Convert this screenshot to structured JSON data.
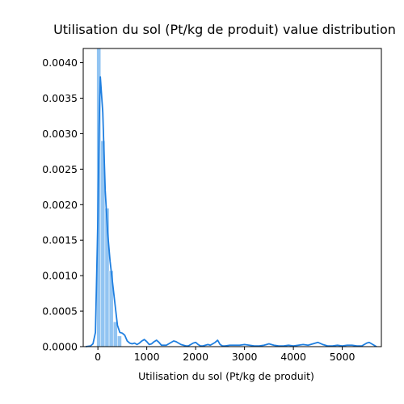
{
  "chart_data": {
    "type": "histogram",
    "title": "Utilisation du sol (Pt/kg de produit) value distribution",
    "xlabel": "Utilisation du sol (Pt/kg de produit)",
    "ylabel": "",
    "xlim": [
      -300,
      5800
    ],
    "ylim": [
      0,
      0.0042
    ],
    "x_ticks": [
      0,
      1000,
      2000,
      3000,
      4000,
      5000
    ],
    "x_tick_labels": [
      "0",
      "1000",
      "2000",
      "3000",
      "4000",
      "5000"
    ],
    "y_ticks": [
      0,
      0.0005,
      0.001,
      0.0015,
      0.002,
      0.0025,
      0.003,
      0.0035,
      0.004
    ],
    "y_tick_labels": [
      "0.0000",
      "0.0005",
      "0.0010",
      "0.0015",
      "0.0020",
      "0.0025",
      "0.0030",
      "0.0035",
      "0.0040"
    ],
    "histogram": {
      "bins": [
        {
          "x0": -25,
          "x1": 60,
          "density": 0.0042
        },
        {
          "x0": 60,
          "x1": 145,
          "density": 0.0029
        },
        {
          "x0": 145,
          "x1": 230,
          "density": 0.00195
        },
        {
          "x0": 230,
          "x1": 315,
          "density": 0.00107
        },
        {
          "x0": 315,
          "x1": 400,
          "density": 0.00035
        },
        {
          "x0": 400,
          "x1": 485,
          "density": 0.00015
        }
      ],
      "color": "#92c4f2"
    },
    "kde": {
      "color": "#1f7fe0",
      "x": [
        -250,
        -150,
        -100,
        -50,
        0,
        25,
        50,
        100,
        150,
        200,
        250,
        300,
        350,
        400,
        450,
        500,
        550,
        600,
        650,
        700,
        750,
        800,
        850,
        900,
        950,
        1000,
        1050,
        1100,
        1150,
        1200,
        1250,
        1300,
        1350,
        1400,
        1450,
        1500,
        1550,
        1600,
        1650,
        1700,
        1750,
        1800,
        1850,
        1900,
        1950,
        2000,
        2050,
        2100,
        2150,
        2200,
        2250,
        2300,
        2350,
        2400,
        2450,
        2500,
        2550,
        2600,
        2700,
        2800,
        2900,
        3000,
        3100,
        3200,
        3300,
        3400,
        3500,
        3600,
        3700,
        3800,
        3900,
        4000,
        4100,
        4200,
        4300,
        4400,
        4500,
        4600,
        4700,
        4800,
        4900,
        5000,
        5100,
        5200,
        5300,
        5400,
        5450,
        5500,
        5550,
        5600,
        5650,
        5700
      ],
      "y": [
        0,
        1e-05,
        4e-05,
        0.0002,
        0.0018,
        0.0031,
        0.0038,
        0.0033,
        0.0022,
        0.0016,
        0.0012,
        0.0009,
        0.0006,
        0.0003,
        0.0002,
        0.00019,
        0.00016,
        8e-05,
        5e-05,
        4e-05,
        5e-05,
        3e-05,
        5e-05,
        8e-05,
        0.0001,
        7e-05,
        3e-05,
        4e-05,
        7e-05,
        9e-05,
        6e-05,
        2e-05,
        2e-05,
        2e-05,
        4e-05,
        6e-05,
        8e-05,
        7e-05,
        5e-05,
        3e-05,
        2e-05,
        1e-05,
        1e-05,
        3e-05,
        5e-05,
        6e-05,
        3e-05,
        1e-05,
        1e-05,
        2e-05,
        3e-05,
        2e-05,
        4e-05,
        6e-05,
        9e-05,
        3e-05,
        1e-05,
        1e-05,
        2e-05,
        2e-05,
        2e-05,
        3e-05,
        2e-05,
        1e-05,
        1e-05,
        2e-05,
        4e-05,
        2e-05,
        1e-05,
        1e-05,
        2e-05,
        1e-05,
        2e-05,
        3e-05,
        2e-05,
        4e-05,
        6e-05,
        3e-05,
        1e-05,
        1e-05,
        2e-05,
        1e-05,
        2e-05,
        2e-05,
        1e-05,
        1e-05,
        3e-05,
        5e-05,
        6e-05,
        4e-05,
        2e-05,
        0
      ]
    },
    "grid": false,
    "legend": null
  }
}
